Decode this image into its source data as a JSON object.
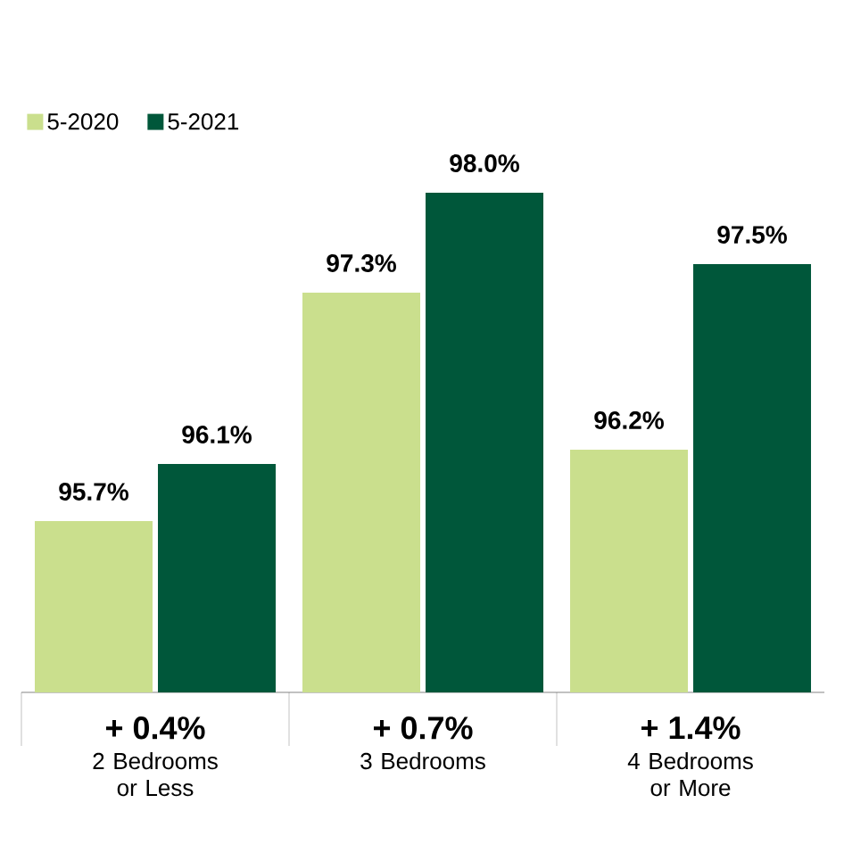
{
  "chart_data": {
    "type": "bar",
    "categories": [
      "2 Bedrooms or Less",
      "3 Bedrooms",
      "4 Bedrooms or More"
    ],
    "series": [
      {
        "name": "5-2020",
        "color": "#cadf8d",
        "values": [
          95.7,
          97.3,
          96.2
        ],
        "value_labels": [
          "95.7%",
          "97.3%",
          "96.2%"
        ]
      },
      {
        "name": "5-2021",
        "color": "#00573a",
        "values": [
          96.1,
          98.0,
          97.5
        ],
        "value_labels": [
          "96.1%",
          "98.0%",
          "97.5%"
        ]
      }
    ],
    "annotations": [
      "+ 0.4%",
      "+ 0.7%",
      "+ 1.4%"
    ],
    "ylim": [
      94.5,
      98.0
    ],
    "tick_labels": "x",
    "legend": "top left"
  }
}
